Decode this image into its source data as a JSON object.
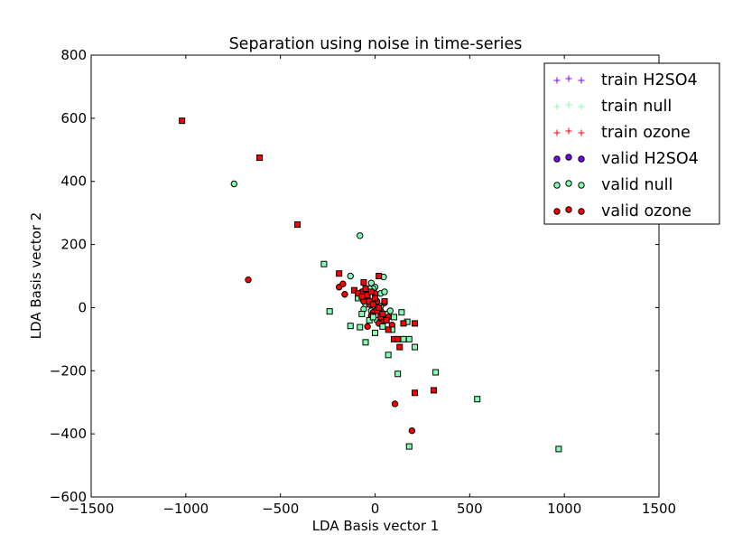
{
  "chart_data": {
    "type": "scatter",
    "title": "Separation using noise in time-series",
    "xlabel": "LDA Basis vector 1",
    "ylabel": "LDA Basis vector 2",
    "xlim": [
      -1500,
      1500
    ],
    "ylim": [
      -600,
      800
    ],
    "xticks": [
      -1500,
      -1000,
      -500,
      0,
      500,
      1000,
      1500
    ],
    "yticks": [
      -600,
      -400,
      -200,
      0,
      200,
      400,
      600,
      800
    ],
    "xtick_labels": [
      "−1500",
      "−1000",
      "−500",
      "0",
      "500",
      "1000",
      "1500"
    ],
    "ytick_labels": [
      "−600",
      "−400",
      "−200",
      "0",
      "200",
      "400",
      "600",
      "800"
    ],
    "grid": false,
    "legend_position": "top-right",
    "series": [
      {
        "name": "train H2SO4",
        "marker": "plus",
        "color": "#7f00ff",
        "points": []
      },
      {
        "name": "train null",
        "marker": "plus",
        "color": "#80ffb4",
        "points": []
      },
      {
        "name": "train ozone",
        "marker": "plus",
        "color": "#ff0000",
        "points": []
      },
      {
        "name": "valid H2SO4",
        "marker": "circle",
        "color": "#7f00ff",
        "points": []
      },
      {
        "name": "valid null",
        "marker": "circle",
        "color": "#80ffb4",
        "points": [
          [
            -745,
            392
          ],
          [
            -80,
            228
          ],
          [
            -130,
            100
          ],
          [
            45,
            97
          ],
          [
            -20,
            78
          ],
          [
            0,
            65
          ],
          [
            -10,
            60
          ],
          [
            30,
            45
          ],
          [
            50,
            50
          ],
          [
            -40,
            30
          ],
          [
            -50,
            10
          ],
          [
            5,
            20
          ],
          [
            -20,
            -10
          ],
          [
            60,
            -20
          ],
          [
            10,
            -40
          ],
          [
            80,
            -10
          ],
          [
            30,
            5
          ],
          [
            -60,
            -5
          ],
          [
            -30,
            60
          ]
        ]
      },
      {
        "name": "valid ozone",
        "marker": "circle",
        "color": "#ff0000",
        "points": [
          [
            -670,
            88
          ],
          [
            -190,
            65
          ],
          [
            -170,
            75
          ],
          [
            -160,
            42
          ],
          [
            -90,
            36
          ],
          [
            -70,
            50
          ],
          [
            -50,
            30
          ],
          [
            -30,
            10
          ],
          [
            -10,
            -15
          ],
          [
            10,
            20
          ],
          [
            30,
            -10
          ],
          [
            50,
            15
          ],
          [
            70,
            -30
          ],
          [
            90,
            -55
          ],
          [
            -40,
            -60
          ],
          [
            0,
            45
          ],
          [
            -20,
            -25
          ],
          [
            40,
            -40
          ],
          [
            105,
            -305
          ],
          [
            195,
            -390
          ],
          [
            -60,
            20
          ],
          [
            20,
            -50
          ]
        ]
      },
      {
        "name": "",
        "marker": "square",
        "color": "#80ffb4",
        "points": [
          [
            -270,
            138
          ],
          [
            -240,
            -12
          ],
          [
            -130,
            -58
          ],
          [
            -80,
            -62
          ],
          [
            -50,
            -110
          ],
          [
            -90,
            30
          ],
          [
            -70,
            -20
          ],
          [
            -30,
            -40
          ],
          [
            0,
            -80
          ],
          [
            40,
            -60
          ],
          [
            70,
            -150
          ],
          [
            90,
            -70
          ],
          [
            100,
            -30
          ],
          [
            120,
            -210
          ],
          [
            140,
            -15
          ],
          [
            150,
            -100
          ],
          [
            170,
            -45
          ],
          [
            180,
            -100
          ],
          [
            180,
            -440
          ],
          [
            210,
            -125
          ],
          [
            320,
            -205
          ],
          [
            540,
            -290
          ],
          [
            970,
            -448
          ],
          [
            60,
            -40
          ],
          [
            -10,
            -30
          ]
        ]
      },
      {
        "name": "",
        "marker": "square",
        "color": "#ff0000",
        "points": [
          [
            -1020,
            592
          ],
          [
            -610,
            475
          ],
          [
            -410,
            263
          ],
          [
            -190,
            108
          ],
          [
            -110,
            55
          ],
          [
            -90,
            45
          ],
          [
            -70,
            35
          ],
          [
            -60,
            80
          ],
          [
            -50,
            60
          ],
          [
            -40,
            40
          ],
          [
            -30,
            20
          ],
          [
            -20,
            50
          ],
          [
            -10,
            10
          ],
          [
            0,
            30
          ],
          [
            10,
            -10
          ],
          [
            20,
            0
          ],
          [
            20,
            100
          ],
          [
            30,
            -30
          ],
          [
            40,
            -20
          ],
          [
            50,
            20
          ],
          [
            60,
            -40
          ],
          [
            70,
            -70
          ],
          [
            100,
            -100
          ],
          [
            120,
            -100
          ],
          [
            130,
            -125
          ],
          [
            150,
            -50
          ],
          [
            210,
            -50
          ],
          [
            210,
            -270
          ],
          [
            310,
            -262
          ]
        ]
      }
    ]
  }
}
